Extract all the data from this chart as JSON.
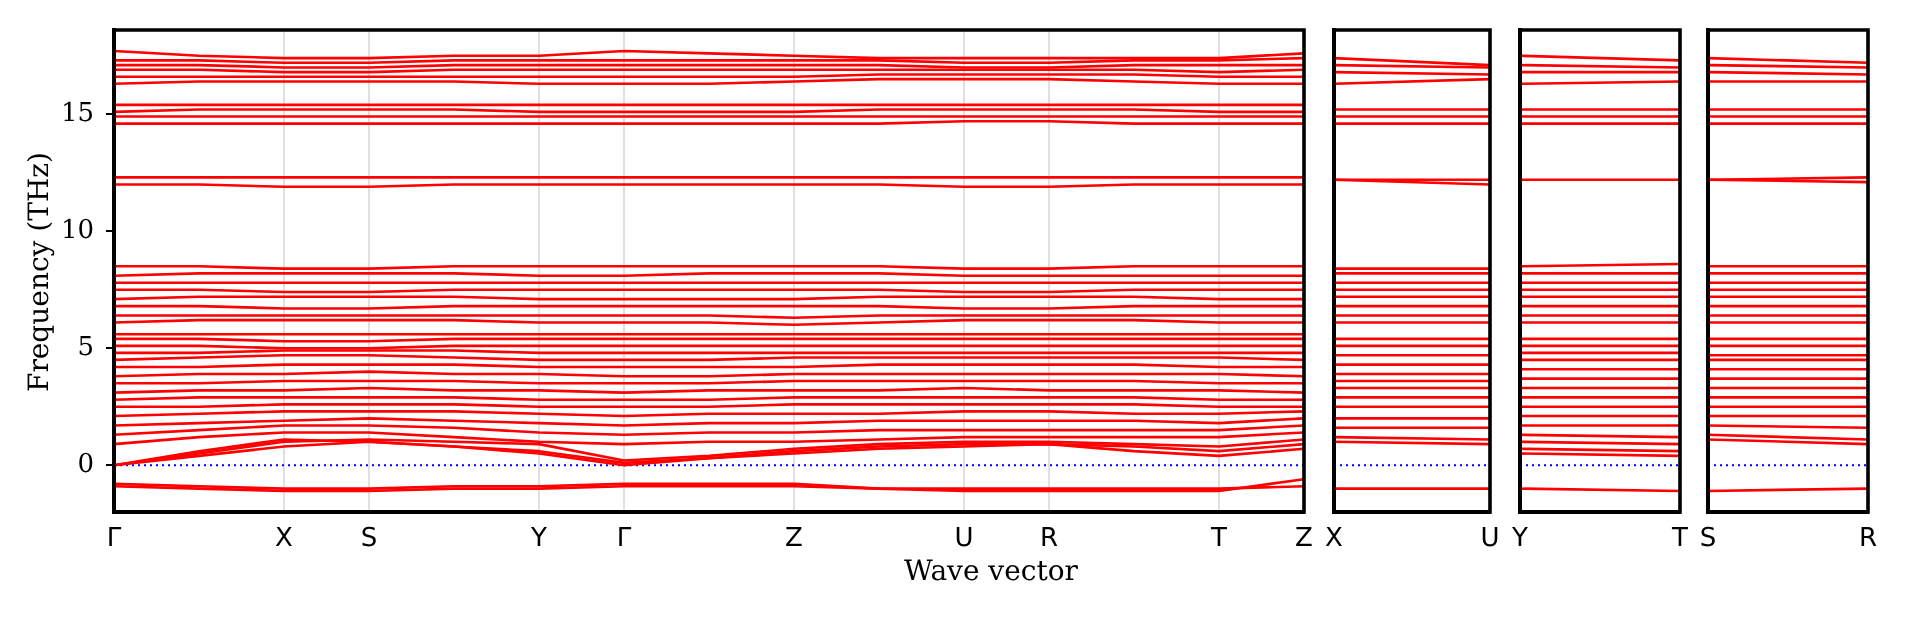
{
  "chart_data": [
    {
      "type": "line",
      "ylabel": "Frequency (THz)",
      "xlabel": "Wave vector",
      "categories": [
        "Γ",
        null,
        "X",
        "S",
        null,
        "Y",
        "Γ",
        null,
        "Z",
        null,
        "U",
        "R",
        null,
        "T",
        "Z"
      ],
      "ylim": [
        -2,
        18.6
      ],
      "yticks": [
        0,
        5,
        10,
        15
      ],
      "grid": "x",
      "marker": "none",
      "line_style": "solid",
      "ref_lines": [
        {
          "axis": "y",
          "value": 0,
          "color": "#0000ff",
          "line_style": "dotted"
        }
      ],
      "series": [
        {
          "color": "#ff0000",
          "values": [
            -0.9,
            -1.0,
            -1.1,
            -1.1,
            -1.0,
            -1.0,
            -0.9,
            -0.9,
            -0.9,
            -1.0,
            -1.0,
            -1.0,
            -1.0,
            -1.0,
            -0.9
          ]
        },
        {
          "color": "#ff0000",
          "values": [
            -0.8,
            -0.9,
            -1.0,
            -1.0,
            -0.9,
            -0.9,
            -0.8,
            -0.8,
            -0.8,
            -1.0,
            -1.1,
            -1.1,
            -1.1,
            -1.1,
            -0.6
          ]
        },
        {
          "color": "#ff0000",
          "values": [
            0,
            0.4,
            0.8,
            1.0,
            0.8,
            0.5,
            0,
            0.3,
            0.6,
            0.8,
            0.9,
            0.9,
            0.6,
            0.4,
            0.7
          ]
        },
        {
          "color": "#ff0000",
          "values": [
            0,
            0.6,
            1.1,
            1.0,
            0.8,
            0.6,
            0.1,
            0.3,
            0.5,
            0.7,
            0.8,
            0.9,
            0.8,
            0.6,
            0.9
          ]
        },
        {
          "color": "#ff0000",
          "values": [
            0,
            0.5,
            1.0,
            1.1,
            1.0,
            0.9,
            0.2,
            0.4,
            0.7,
            0.9,
            1.0,
            1.0,
            0.9,
            0.8,
            1.1
          ]
        },
        {
          "color": "#ff0000",
          "values": [
            0.9,
            1.2,
            1.4,
            1.4,
            1.2,
            1.0,
            0.9,
            1.0,
            1.0,
            1.1,
            1.2,
            1.2,
            1.2,
            1.2,
            1.4
          ]
        },
        {
          "color": "#ff0000",
          "values": [
            1.3,
            1.5,
            1.7,
            1.7,
            1.6,
            1.4,
            1.3,
            1.4,
            1.4,
            1.5,
            1.5,
            1.5,
            1.5,
            1.5,
            1.7
          ]
        },
        {
          "color": "#ff0000",
          "values": [
            1.7,
            1.8,
            1.9,
            2.0,
            1.9,
            1.8,
            1.7,
            1.8,
            1.8,
            1.9,
            1.9,
            1.9,
            1.9,
            1.8,
            2.0
          ]
        },
        {
          "color": "#ff0000",
          "values": [
            2.1,
            2.2,
            2.3,
            2.3,
            2.3,
            2.2,
            2.1,
            2.2,
            2.2,
            2.2,
            2.3,
            2.3,
            2.2,
            2.2,
            2.3
          ]
        },
        {
          "color": "#ff0000",
          "values": [
            2.5,
            2.5,
            2.6,
            2.6,
            2.6,
            2.5,
            2.5,
            2.5,
            2.6,
            2.6,
            2.6,
            2.6,
            2.6,
            2.5,
            2.5
          ]
        },
        {
          "color": "#ff0000",
          "values": [
            2.8,
            2.9,
            2.9,
            2.9,
            2.9,
            2.8,
            2.8,
            2.8,
            2.9,
            2.9,
            2.9,
            2.9,
            2.9,
            2.8,
            2.8
          ]
        },
        {
          "color": "#ff0000",
          "values": [
            3.1,
            3.2,
            3.2,
            3.3,
            3.2,
            3.2,
            3.1,
            3.2,
            3.2,
            3.2,
            3.3,
            3.2,
            3.2,
            3.2,
            3.1
          ]
        },
        {
          "color": "#ff0000",
          "values": [
            3.5,
            3.5,
            3.6,
            3.6,
            3.6,
            3.5,
            3.5,
            3.5,
            3.6,
            3.6,
            3.6,
            3.6,
            3.6,
            3.5,
            3.5
          ]
        },
        {
          "color": "#ff0000",
          "values": [
            3.8,
            3.9,
            3.9,
            4.0,
            3.9,
            3.9,
            3.8,
            3.8,
            3.9,
            3.9,
            3.9,
            3.9,
            3.9,
            3.9,
            3.8
          ]
        },
        {
          "color": "#ff0000",
          "values": [
            4.2,
            4.2,
            4.3,
            4.3,
            4.3,
            4.2,
            4.2,
            4.2,
            4.2,
            4.3,
            4.3,
            4.3,
            4.3,
            4.2,
            4.2
          ]
        },
        {
          "color": "#ff0000",
          "values": [
            4.5,
            4.6,
            4.7,
            4.7,
            4.6,
            4.5,
            4.5,
            4.5,
            4.6,
            4.6,
            4.6,
            4.6,
            4.6,
            4.6,
            4.5
          ]
        },
        {
          "color": "#ff0000",
          "values": [
            4.8,
            4.8,
            4.9,
            4.9,
            4.9,
            4.8,
            4.8,
            4.8,
            4.8,
            4.8,
            4.8,
            4.8,
            4.8,
            4.8,
            4.8
          ]
        },
        {
          "color": "#ff0000",
          "values": [
            5.1,
            5.1,
            5.0,
            5.0,
            5.1,
            5.1,
            5.1,
            5.1,
            5.1,
            5.1,
            5.1,
            5.1,
            5.1,
            5.1,
            5.1
          ]
        },
        {
          "color": "#ff0000",
          "values": [
            5.4,
            5.4,
            5.3,
            5.3,
            5.4,
            5.4,
            5.4,
            5.4,
            5.4,
            5.4,
            5.4,
            5.4,
            5.4,
            5.4,
            5.4
          ]
        },
        {
          "color": "#ff0000",
          "values": [
            5.6,
            5.6,
            5.6,
            5.6,
            5.6,
            5.6,
            5.6,
            5.6,
            5.6,
            5.6,
            5.6,
            5.6,
            5.6,
            5.6,
            5.6
          ]
        },
        {
          "color": "#ff0000",
          "values": [
            6.1,
            6.2,
            6.2,
            6.2,
            6.2,
            6.1,
            6.1,
            6.1,
            6.0,
            6.1,
            6.2,
            6.2,
            6.2,
            6.1,
            6.1
          ]
        },
        {
          "color": "#ff0000",
          "values": [
            6.4,
            6.4,
            6.4,
            6.4,
            6.4,
            6.4,
            6.4,
            6.4,
            6.3,
            6.4,
            6.4,
            6.4,
            6.4,
            6.4,
            6.4
          ]
        },
        {
          "color": "#ff0000",
          "values": [
            6.8,
            6.8,
            6.7,
            6.7,
            6.8,
            6.8,
            6.8,
            6.8,
            6.8,
            6.8,
            6.7,
            6.7,
            6.8,
            6.8,
            6.8
          ]
        },
        {
          "color": "#ff0000",
          "values": [
            7.1,
            7.2,
            7.2,
            7.2,
            7.2,
            7.1,
            7.1,
            7.1,
            7.1,
            7.2,
            7.2,
            7.2,
            7.2,
            7.1,
            7.1
          ]
        },
        {
          "color": "#ff0000",
          "values": [
            7.5,
            7.5,
            7.4,
            7.4,
            7.5,
            7.5,
            7.5,
            7.5,
            7.5,
            7.5,
            7.4,
            7.4,
            7.5,
            7.5,
            7.5
          ]
        },
        {
          "color": "#ff0000",
          "values": [
            7.8,
            7.8,
            7.8,
            7.8,
            7.8,
            7.8,
            7.8,
            7.8,
            7.8,
            7.8,
            7.8,
            7.8,
            7.8,
            7.8,
            7.8
          ]
        },
        {
          "color": "#ff0000",
          "values": [
            8.1,
            8.2,
            8.2,
            8.2,
            8.2,
            8.1,
            8.1,
            8.2,
            8.2,
            8.2,
            8.1,
            8.1,
            8.1,
            8.1,
            8.1
          ]
        },
        {
          "color": "#ff0000",
          "values": [
            8.5,
            8.5,
            8.4,
            8.4,
            8.5,
            8.5,
            8.5,
            8.5,
            8.5,
            8.5,
            8.4,
            8.4,
            8.5,
            8.5,
            8.5
          ]
        },
        {
          "color": "#ff0000",
          "values": [
            12.0,
            12.0,
            11.9,
            11.9,
            12.0,
            12.0,
            12.0,
            12.0,
            12.0,
            12.0,
            11.9,
            11.9,
            12.0,
            12.0,
            12.0
          ]
        },
        {
          "color": "#ff0000",
          "values": [
            12.3,
            12.3,
            12.3,
            12.3,
            12.3,
            12.3,
            12.3,
            12.3,
            12.3,
            12.3,
            12.3,
            12.3,
            12.3,
            12.3,
            12.3
          ]
        },
        {
          "color": "#ff0000",
          "values": [
            14.6,
            14.6,
            14.6,
            14.6,
            14.6,
            14.6,
            14.6,
            14.6,
            14.6,
            14.6,
            14.7,
            14.7,
            14.6,
            14.6,
            14.6
          ]
        },
        {
          "color": "#ff0000",
          "values": [
            14.9,
            14.9,
            14.9,
            14.9,
            14.9,
            14.9,
            14.9,
            14.9,
            14.9,
            14.9,
            14.9,
            14.9,
            14.9,
            14.9,
            14.9
          ]
        },
        {
          "color": "#ff0000",
          "values": [
            15.1,
            15.2,
            15.2,
            15.2,
            15.2,
            15.1,
            15.1,
            15.1,
            15.1,
            15.2,
            15.2,
            15.2,
            15.2,
            15.1,
            15.1
          ]
        },
        {
          "color": "#ff0000",
          "values": [
            15.4,
            15.4,
            15.4,
            15.4,
            15.4,
            15.4,
            15.4,
            15.4,
            15.4,
            15.4,
            15.4,
            15.4,
            15.4,
            15.4,
            15.4
          ]
        },
        {
          "color": "#ff0000",
          "values": [
            16.3,
            16.4,
            16.4,
            16.4,
            16.4,
            16.3,
            16.3,
            16.3,
            16.4,
            16.5,
            16.5,
            16.5,
            16.4,
            16.3,
            16.3
          ]
        },
        {
          "color": "#ff0000",
          "values": [
            16.6,
            16.6,
            16.6,
            16.6,
            16.6,
            16.6,
            16.6,
            16.6,
            16.6,
            16.7,
            16.7,
            16.7,
            16.7,
            16.6,
            16.6
          ]
        },
        {
          "color": "#ff0000",
          "values": [
            16.9,
            16.9,
            16.8,
            16.8,
            16.9,
            16.9,
            16.9,
            16.9,
            16.9,
            16.9,
            16.9,
            16.9,
            16.9,
            16.8,
            16.9
          ]
        },
        {
          "color": "#ff0000",
          "values": [
            17.1,
            17.1,
            17.0,
            17.0,
            17.1,
            17.1,
            17.1,
            17.1,
            17.1,
            17.1,
            17.0,
            17.0,
            17.1,
            17.1,
            17.1
          ]
        },
        {
          "color": "#ff0000",
          "values": [
            17.3,
            17.3,
            17.2,
            17.2,
            17.3,
            17.3,
            17.3,
            17.3,
            17.3,
            17.3,
            17.2,
            17.2,
            17.3,
            17.3,
            17.4
          ]
        },
        {
          "color": "#ff0000",
          "values": [
            17.7,
            17.5,
            17.4,
            17.4,
            17.5,
            17.5,
            17.7,
            17.6,
            17.5,
            17.4,
            17.4,
            17.4,
            17.4,
            17.4,
            17.6
          ]
        }
      ]
    },
    {
      "type": "line",
      "categories": [
        "X",
        "U"
      ],
      "ylim": [
        -2,
        18.6
      ],
      "yticks": [
        0,
        5,
        10,
        15
      ],
      "tick_labels": "x",
      "marker": "none",
      "line_style": "solid",
      "ref_lines": [
        {
          "axis": "y",
          "value": 0,
          "color": "#0000ff",
          "line_style": "dotted"
        }
      ],
      "series": [
        {
          "color": "#ff0000",
          "values": [
            -1.0,
            -1.0
          ]
        },
        {
          "color": "#ff0000",
          "values": [
            1.0,
            0.9
          ]
        },
        {
          "color": "#ff0000",
          "values": [
            1.2,
            1.1
          ]
        },
        {
          "color": "#ff0000",
          "values": [
            1.6,
            1.6
          ]
        },
        {
          "color": "#ff0000",
          "values": [
            2.0,
            2.0
          ]
        },
        {
          "color": "#ff0000",
          "values": [
            2.5,
            2.5
          ]
        },
        {
          "color": "#ff0000",
          "values": [
            2.9,
            2.9
          ]
        },
        {
          "color": "#ff0000",
          "values": [
            3.3,
            3.3
          ]
        },
        {
          "color": "#ff0000",
          "values": [
            3.6,
            3.6
          ]
        },
        {
          "color": "#ff0000",
          "values": [
            3.9,
            3.9
          ]
        },
        {
          "color": "#ff0000",
          "values": [
            4.3,
            4.3
          ]
        },
        {
          "color": "#ff0000",
          "values": [
            4.7,
            4.7
          ]
        },
        {
          "color": "#ff0000",
          "values": [
            5.1,
            5.1
          ]
        },
        {
          "color": "#ff0000",
          "values": [
            5.4,
            5.4
          ]
        },
        {
          "color": "#ff0000",
          "values": [
            6.1,
            6.1
          ]
        },
        {
          "color": "#ff0000",
          "values": [
            6.4,
            6.4
          ]
        },
        {
          "color": "#ff0000",
          "values": [
            6.8,
            6.8
          ]
        },
        {
          "color": "#ff0000",
          "values": [
            7.2,
            7.2
          ]
        },
        {
          "color": "#ff0000",
          "values": [
            7.5,
            7.5
          ]
        },
        {
          "color": "#ff0000",
          "values": [
            7.8,
            7.8
          ]
        },
        {
          "color": "#ff0000",
          "values": [
            8.2,
            8.2
          ]
        },
        {
          "color": "#ff0000",
          "values": [
            8.4,
            8.4
          ]
        },
        {
          "color": "#ff0000",
          "values": [
            12.2,
            12.0
          ]
        },
        {
          "color": "#ff0000",
          "values": [
            12.2,
            12.2
          ]
        },
        {
          "color": "#ff0000",
          "values": [
            14.6,
            14.6
          ]
        },
        {
          "color": "#ff0000",
          "values": [
            14.9,
            14.9
          ]
        },
        {
          "color": "#ff0000",
          "values": [
            15.2,
            15.2
          ]
        },
        {
          "color": "#ff0000",
          "values": [
            16.3,
            16.5
          ]
        },
        {
          "color": "#ff0000",
          "values": [
            16.8,
            16.7
          ]
        },
        {
          "color": "#ff0000",
          "values": [
            17.1,
            17.0
          ]
        },
        {
          "color": "#ff0000",
          "values": [
            17.4,
            17.1
          ]
        }
      ]
    },
    {
      "type": "line",
      "categories": [
        "Y",
        "T"
      ],
      "ylim": [
        -2,
        18.6
      ],
      "yticks": [
        0,
        5,
        10,
        15
      ],
      "tick_labels": "x",
      "marker": "none",
      "line_style": "solid",
      "ref_lines": [
        {
          "axis": "y",
          "value": 0,
          "color": "#0000ff",
          "line_style": "dotted"
        }
      ],
      "series": [
        {
          "color": "#ff0000",
          "values": [
            -1.0,
            -1.1
          ]
        },
        {
          "color": "#ff0000",
          "values": [
            0.5,
            0.4
          ]
        },
        {
          "color": "#ff0000",
          "values": [
            0.7,
            0.6
          ]
        },
        {
          "color": "#ff0000",
          "values": [
            1.0,
            0.9
          ]
        },
        {
          "color": "#ff0000",
          "values": [
            1.3,
            1.2
          ]
        },
        {
          "color": "#ff0000",
          "values": [
            1.7,
            1.7
          ]
        },
        {
          "color": "#ff0000",
          "values": [
            2.1,
            2.1
          ]
        },
        {
          "color": "#ff0000",
          "values": [
            2.5,
            2.5
          ]
        },
        {
          "color": "#ff0000",
          "values": [
            2.9,
            2.9
          ]
        },
        {
          "color": "#ff0000",
          "values": [
            3.3,
            3.3
          ]
        },
        {
          "color": "#ff0000",
          "values": [
            3.7,
            3.7
          ]
        },
        {
          "color": "#ff0000",
          "values": [
            4.1,
            4.1
          ]
        },
        {
          "color": "#ff0000",
          "values": [
            4.5,
            4.5
          ]
        },
        {
          "color": "#ff0000",
          "values": [
            4.8,
            4.8
          ]
        },
        {
          "color": "#ff0000",
          "values": [
            5.1,
            5.1
          ]
        },
        {
          "color": "#ff0000",
          "values": [
            5.4,
            5.4
          ]
        },
        {
          "color": "#ff0000",
          "values": [
            6.1,
            6.1
          ]
        },
        {
          "color": "#ff0000",
          "values": [
            6.4,
            6.4
          ]
        },
        {
          "color": "#ff0000",
          "values": [
            6.8,
            6.8
          ]
        },
        {
          "color": "#ff0000",
          "values": [
            7.2,
            7.2
          ]
        },
        {
          "color": "#ff0000",
          "values": [
            7.5,
            7.5
          ]
        },
        {
          "color": "#ff0000",
          "values": [
            7.8,
            7.8
          ]
        },
        {
          "color": "#ff0000",
          "values": [
            8.2,
            8.2
          ]
        },
        {
          "color": "#ff0000",
          "values": [
            8.5,
            8.6
          ]
        },
        {
          "color": "#ff0000",
          "values": [
            12.2,
            12.2
          ]
        },
        {
          "color": "#ff0000",
          "values": [
            14.6,
            14.6
          ]
        },
        {
          "color": "#ff0000",
          "values": [
            14.9,
            14.9
          ]
        },
        {
          "color": "#ff0000",
          "values": [
            15.2,
            15.2
          ]
        },
        {
          "color": "#ff0000",
          "values": [
            16.3,
            16.4
          ]
        },
        {
          "color": "#ff0000",
          "values": [
            16.8,
            16.8
          ]
        },
        {
          "color": "#ff0000",
          "values": [
            17.1,
            17.0
          ]
        },
        {
          "color": "#ff0000",
          "values": [
            17.5,
            17.3
          ]
        }
      ]
    },
    {
      "type": "line",
      "categories": [
        "S",
        "R"
      ],
      "ylim": [
        -2,
        18.6
      ],
      "yticks": [
        0,
        5,
        10,
        15
      ],
      "tick_labels": "x",
      "marker": "none",
      "line_style": "solid",
      "ref_lines": [
        {
          "axis": "y",
          "value": 0,
          "color": "#0000ff",
          "line_style": "dotted"
        }
      ],
      "series": [
        {
          "color": "#ff0000",
          "values": [
            -1.1,
            -1.0
          ]
        },
        {
          "color": "#ff0000",
          "values": [
            1.1,
            0.9
          ]
        },
        {
          "color": "#ff0000",
          "values": [
            1.3,
            1.1
          ]
        },
        {
          "color": "#ff0000",
          "values": [
            1.7,
            1.6
          ]
        },
        {
          "color": "#ff0000",
          "values": [
            2.1,
            2.1
          ]
        },
        {
          "color": "#ff0000",
          "values": [
            2.5,
            2.5
          ]
        },
        {
          "color": "#ff0000",
          "values": [
            2.9,
            2.9
          ]
        },
        {
          "color": "#ff0000",
          "values": [
            3.3,
            3.3
          ]
        },
        {
          "color": "#ff0000",
          "values": [
            3.7,
            3.7
          ]
        },
        {
          "color": "#ff0000",
          "values": [
            4.1,
            4.1
          ]
        },
        {
          "color": "#ff0000",
          "values": [
            4.5,
            4.5
          ]
        },
        {
          "color": "#ff0000",
          "values": [
            4.7,
            4.7
          ]
        },
        {
          "color": "#ff0000",
          "values": [
            5.1,
            5.1
          ]
        },
        {
          "color": "#ff0000",
          "values": [
            5.4,
            5.4
          ]
        },
        {
          "color": "#ff0000",
          "values": [
            6.1,
            6.1
          ]
        },
        {
          "color": "#ff0000",
          "values": [
            6.4,
            6.4
          ]
        },
        {
          "color": "#ff0000",
          "values": [
            6.8,
            6.8
          ]
        },
        {
          "color": "#ff0000",
          "values": [
            7.2,
            7.2
          ]
        },
        {
          "color": "#ff0000",
          "values": [
            7.5,
            7.5
          ]
        },
        {
          "color": "#ff0000",
          "values": [
            7.8,
            7.8
          ]
        },
        {
          "color": "#ff0000",
          "values": [
            8.2,
            8.2
          ]
        },
        {
          "color": "#ff0000",
          "values": [
            8.5,
            8.5
          ]
        },
        {
          "color": "#ff0000",
          "values": [
            12.2,
            12.1
          ]
        },
        {
          "color": "#ff0000",
          "values": [
            12.2,
            12.3
          ]
        },
        {
          "color": "#ff0000",
          "values": [
            14.6,
            14.6
          ]
        },
        {
          "color": "#ff0000",
          "values": [
            14.9,
            14.9
          ]
        },
        {
          "color": "#ff0000",
          "values": [
            15.2,
            15.2
          ]
        },
        {
          "color": "#ff0000",
          "values": [
            16.4,
            16.4
          ]
        },
        {
          "color": "#ff0000",
          "values": [
            16.8,
            16.7
          ]
        },
        {
          "color": "#ff0000",
          "values": [
            17.1,
            17.0
          ]
        },
        {
          "color": "#ff0000",
          "values": [
            17.4,
            17.2
          ]
        }
      ]
    }
  ]
}
